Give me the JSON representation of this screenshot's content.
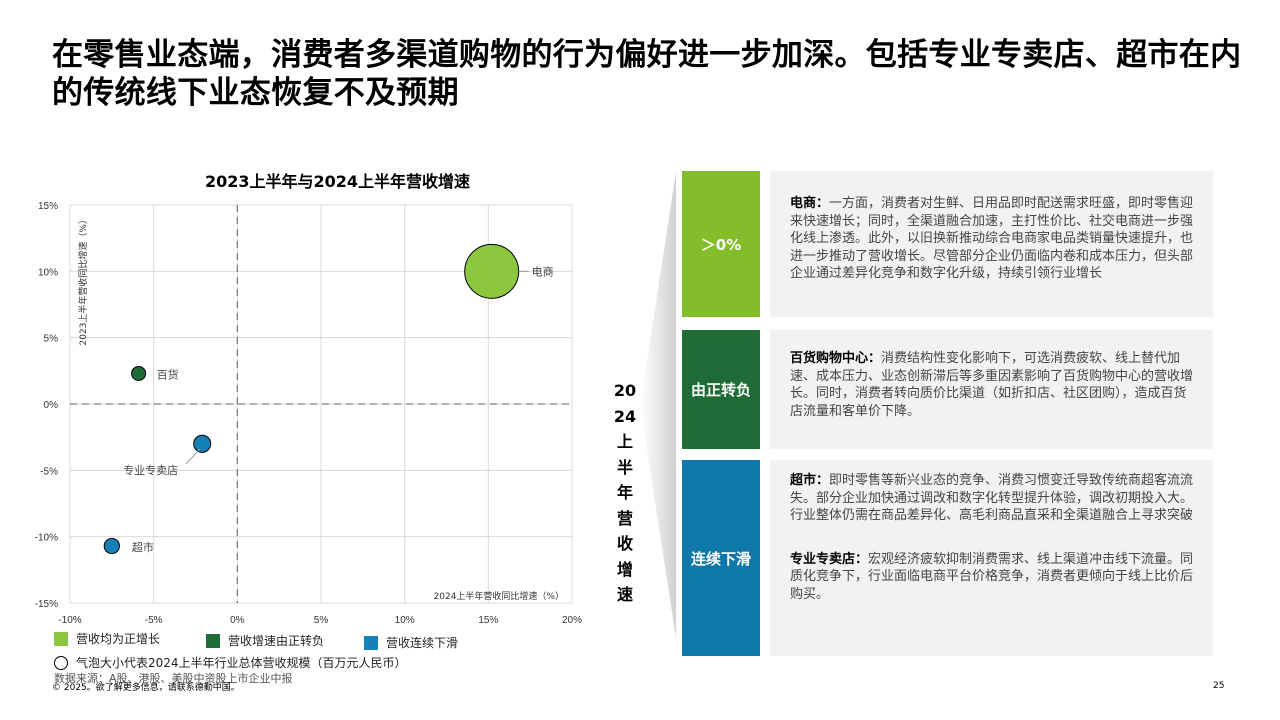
{
  "page": {
    "title": "在零售业态端，消费者多渠道购物的行为偏好进一步加深。包括专业专卖店、超市在内的传统线下业态恢复不及预期",
    "page_number": "25",
    "copyright": "© 2025。欲了解更多信息，请联系德勤中国。"
  },
  "chart_data": {
    "type": "scatter",
    "title": "2023上半年与2024上半年营收增速",
    "xlabel": "2024上半年营收同比增速（%）",
    "ylabel": "2023上半年营收同比增速（%）",
    "xlim": [
      -10,
      20
    ],
    "ylim": [
      -15,
      15
    ],
    "x_ticks": [
      "-10%",
      "-5%",
      "0%",
      "5%",
      "10%",
      "15%",
      "20%"
    ],
    "y_ticks": [
      "15%",
      "10%",
      "5%",
      "0%",
      "-5%",
      "-10%",
      "-15%"
    ],
    "grid": true,
    "points": [
      {
        "label": "电商",
        "x": 15.2,
        "y": 10.0,
        "size": 100,
        "category": "positive",
        "color": "#8dc63f"
      },
      {
        "label": "百货",
        "x": -5.9,
        "y": 2.3,
        "size": 6,
        "category": "turned_negative",
        "color": "#1e6b35"
      },
      {
        "label": "专业专卖店",
        "x": -2.1,
        "y": -3.0,
        "size": 10,
        "category": "decline",
        "color": "#1781b5"
      },
      {
        "label": "超市",
        "x": -7.5,
        "y": -10.7,
        "size": 8,
        "category": "decline",
        "color": "#1781b5"
      }
    ],
    "legend": [
      {
        "key": "positive",
        "label": "营收均为正增长",
        "color": "#8dc63f"
      },
      {
        "key": "turned_negative",
        "label": "营收增速由正转负",
        "color": "#1e6b35"
      },
      {
        "key": "decline",
        "label": "营收连续下滑",
        "color": "#1781b5"
      }
    ],
    "bubble_note": "气泡大小代表2024上半年行业总体营收规模（百万元人民币）",
    "source": "数据来源：A股、港股、美股中资股上市企业中报"
  },
  "panel": {
    "vertical_label": "2024上半年营收增速",
    "rows": [
      {
        "band_label": "＞0%",
        "band_color": "#84bd2b",
        "paragraphs": [
          {
            "bold": "电商：",
            "text": "一方面，消费者对生鲜、日用品即时配送需求旺盛，即时零售迎来快速增长；同时，全渠道融合加速，主打性价比、社交电商进一步强化线上渗透。此外，以旧换新推动综合电商家电品类销量快速提升，也进一步推动了营收增长。尽管部分企业仍面临内卷和成本压力，但头部企业通过差异化竞争和数字化升级，持续引领行业增长"
          }
        ]
      },
      {
        "band_label": "由正转负",
        "band_color": "#1e6b35",
        "paragraphs": [
          {
            "bold": "百货购物中心：",
            "text": "消费结构性变化影响下，可选消费疲软、线上替代加速、成本压力、业态创新滞后等多重因素影响了百货购物中心的营收增长。同时，消费者转向质价比渠道（如折扣店、社区团购），造成百货店流量和客单价下降。"
          }
        ]
      },
      {
        "band_label": "连续下滑",
        "band_color": "#0f78aa",
        "paragraphs": [
          {
            "bold": "超市：",
            "text": "即时零售等新兴业态的竞争、消费习惯变迁导致传统商超客流流失。部分企业加快通过调改和数字化转型提升体验，调改初期投入大。行业整体仍需在商品差异化、高毛利商品直采和全渠道融合上寻求突破"
          },
          {
            "bold": "专业专卖店：",
            "text": "宏观经济疲软抑制消费需求、线上渠道冲击线下流量。同质化竞争下，行业面临电商平台价格竞争，消费者更倾向于线上比价后购买。"
          }
        ]
      }
    ]
  }
}
